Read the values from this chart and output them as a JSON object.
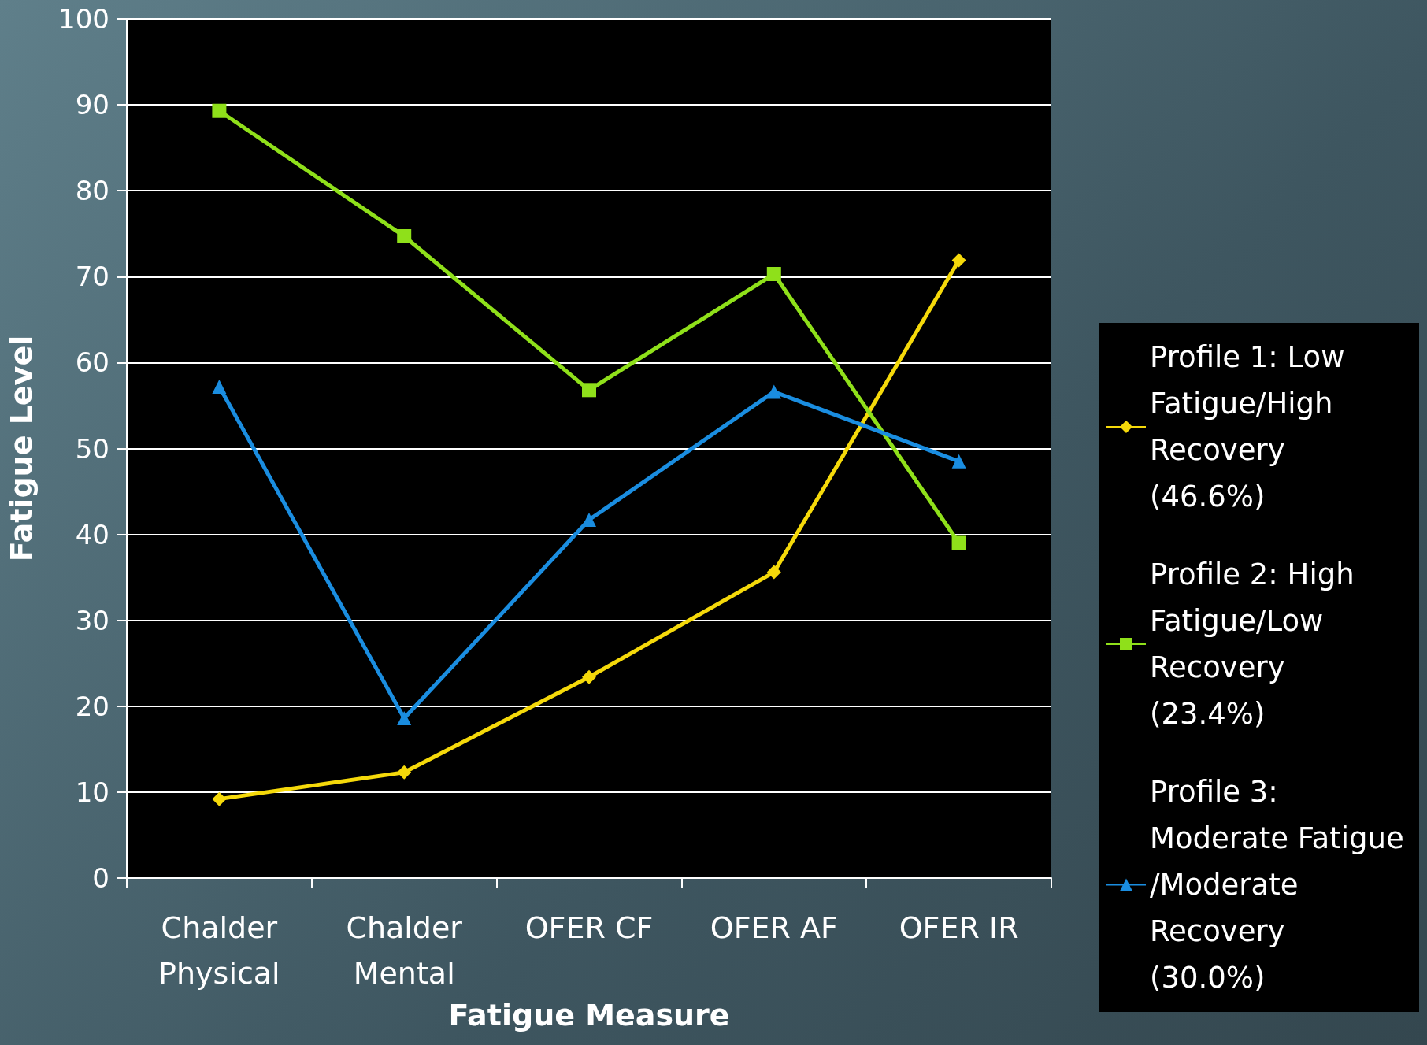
{
  "chart_data": {
    "type": "line",
    "xlabel": "Fatigue Measure",
    "ylabel": "Fatigue Level",
    "categories": [
      "Chalder\nPhysical",
      "Chalder\nMental",
      "OFER CF",
      "OFER AF",
      "OFER IR"
    ],
    "ylim": [
      0,
      100
    ],
    "yticks": [
      0,
      10,
      20,
      30,
      40,
      50,
      60,
      70,
      80,
      90,
      100
    ],
    "grid": "y",
    "legend": "right",
    "series": [
      {
        "name": "Profile 1: Low Fatigue/High Recovery (46.6%)",
        "color": "#f5d90a",
        "marker": "diamond",
        "values": [
          9.2,
          12.3,
          23.4,
          35.6,
          71.9
        ]
      },
      {
        "name": "Profile 2: High Fatigue/Low Recovery (23.4%)",
        "color": "#8fe01a",
        "marker": "square",
        "values": [
          89.3,
          74.7,
          56.8,
          70.3,
          39.0
        ]
      },
      {
        "name": "Profile 3: Moderate Fatigue/Moderate Recovery (30.0%)",
        "color": "#1a8de0",
        "marker": "triangle",
        "values": [
          57.2,
          18.6,
          41.7,
          56.6,
          48.5
        ]
      }
    ]
  }
}
